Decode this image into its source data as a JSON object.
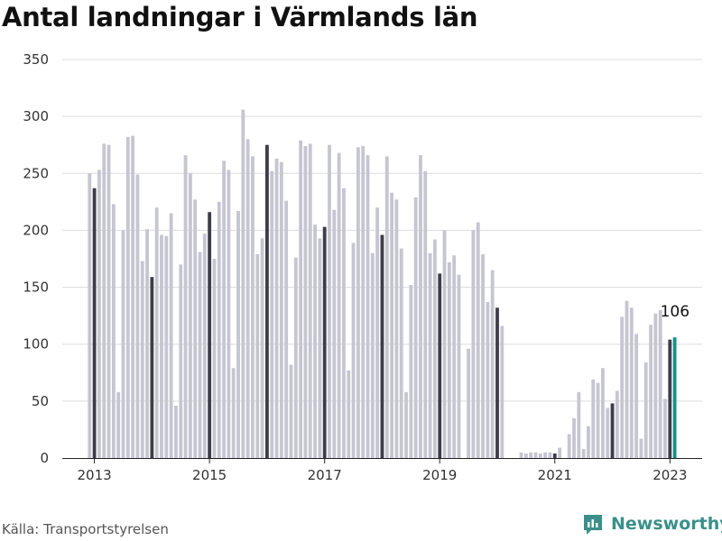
{
  "title": "Antal landningar i Värmlands län",
  "source": "Källa: Transportstyrelsen",
  "brand": "Newsworthy",
  "colors": {
    "bar": "#c6c6d2",
    "january_bar": "#3d3d4b",
    "highlight_bar": "#169188",
    "gridline": "#dddddd",
    "brand": "#3a8f89"
  },
  "chart_data": {
    "type": "bar",
    "title": "Antal landningar i Värmlands län",
    "xlabel": "",
    "ylabel": "",
    "ylim": [
      0,
      350
    ],
    "yticks": [
      0,
      50,
      100,
      150,
      200,
      250,
      300,
      350
    ],
    "xticks": [
      2013,
      2015,
      2017,
      2019,
      2021,
      2023
    ],
    "start": "2012-12",
    "end": "2023-01",
    "highlight_label": "106",
    "grid": true,
    "values": [
      250,
      237,
      253,
      276,
      275,
      223,
      58,
      200,
      282,
      283,
      249,
      173,
      201,
      159,
      220,
      196,
      195,
      215,
      46,
      170,
      266,
      250,
      227,
      181,
      197,
      216,
      175,
      225,
      261,
      253,
      79,
      217,
      306,
      280,
      265,
      179,
      193,
      275,
      252,
      263,
      260,
      226,
      82,
      176,
      279,
      274,
      276,
      205,
      193,
      203,
      275,
      218,
      268,
      237,
      77,
      189,
      273,
      274,
      266,
      180,
      220,
      196,
      265,
      233,
      227,
      184,
      58,
      152,
      229,
      266,
      252,
      180,
      192,
      162,
      200,
      172,
      178,
      161,
      0,
      96,
      200,
      207,
      179,
      137,
      165,
      132,
      116,
      0,
      0,
      0,
      5,
      4,
      5,
      5,
      4,
      5,
      5,
      4,
      9,
      0,
      21,
      35,
      58,
      8,
      28,
      69,
      66,
      79,
      44,
      48,
      59,
      124,
      138,
      132,
      109,
      17,
      84,
      117,
      127,
      130,
      52,
      104,
      106
    ]
  }
}
